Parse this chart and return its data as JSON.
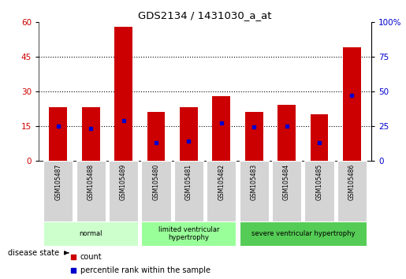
{
  "title": "GDS2134 / 1431030_a_at",
  "samples": [
    "GSM105487",
    "GSM105488",
    "GSM105489",
    "GSM105480",
    "GSM105481",
    "GSM105482",
    "GSM105483",
    "GSM105484",
    "GSM105485",
    "GSM105486"
  ],
  "counts": [
    23,
    23,
    58,
    21,
    23,
    28,
    21,
    24,
    20,
    49
  ],
  "percentile_ranks": [
    25,
    23,
    29,
    13,
    14,
    27,
    24,
    25,
    13,
    47
  ],
  "bar_color": "#cc0000",
  "percentile_color": "#0000cc",
  "groups": [
    {
      "label": "normal",
      "start": 0,
      "end": 3,
      "color": "#ccffcc"
    },
    {
      "label": "limited ventricular\nhypertrophy",
      "start": 3,
      "end": 6,
      "color": "#99ff99"
    },
    {
      "label": "severe ventricular hypertrophy",
      "start": 6,
      "end": 10,
      "color": "#55cc55"
    }
  ],
  "ylim_left": [
    0,
    60
  ],
  "ylim_right": [
    0,
    100
  ],
  "yticks_left": [
    0,
    15,
    30,
    45,
    60
  ],
  "yticks_right": [
    0,
    25,
    50,
    75,
    100
  ],
  "disease_state_label": "disease state",
  "legend_count_label": "count",
  "legend_percentile_label": "percentile rank within the sample",
  "bar_width": 0.55,
  "tick_label_color_left": "#cc0000",
  "tick_label_color_right": "#0000cc",
  "bg_color": "#ffffff",
  "plot_bg_color": "#ffffff",
  "sample_box_color": "#d4d4d4",
  "dotted_line_values": [
    15,
    30,
    45
  ]
}
